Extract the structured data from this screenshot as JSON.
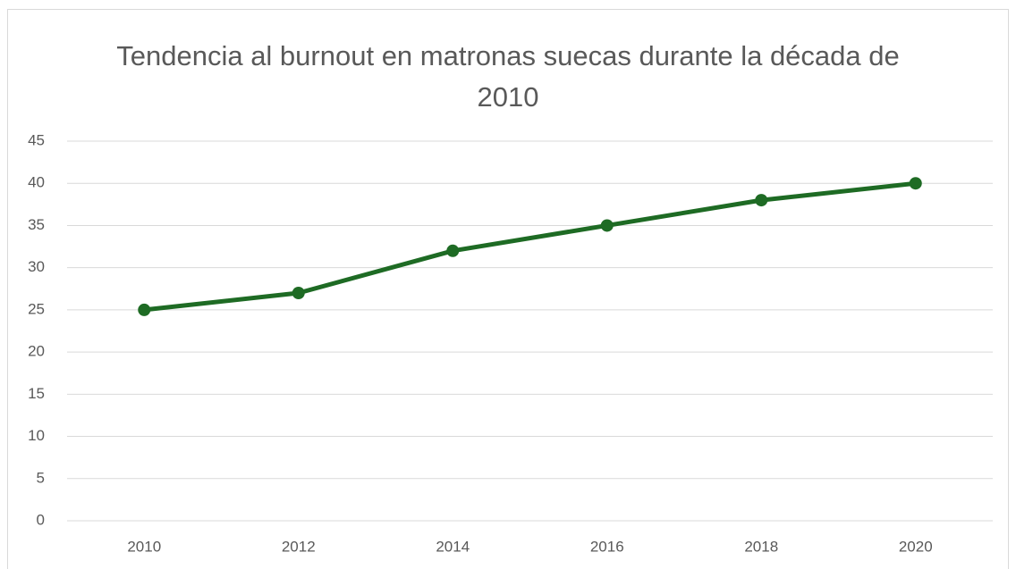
{
  "chart_data": {
    "type": "line",
    "title": "Tendencia al burnout en matronas suecas durante la década de 2010",
    "categories": [
      "2010",
      "2012",
      "2014",
      "2016",
      "2018",
      "2020"
    ],
    "values": [
      25,
      27,
      32,
      35,
      38,
      40
    ],
    "color": "#1e6b24",
    "ylim": [
      0,
      45
    ],
    "yticks": [
      0,
      5,
      10,
      15,
      20,
      25,
      30,
      35,
      40,
      45
    ],
    "grid": true
  }
}
